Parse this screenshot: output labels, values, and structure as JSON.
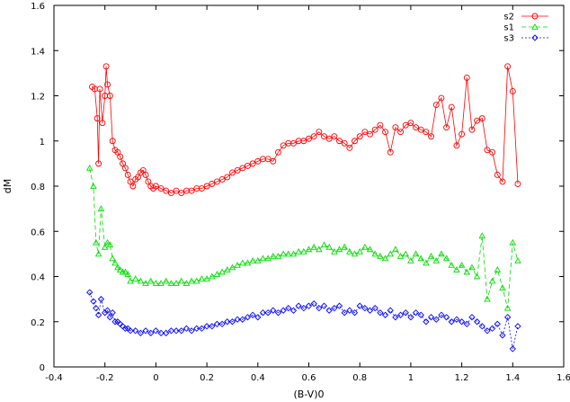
{
  "chart_data": {
    "type": "line",
    "xlabel": "(B-V)0",
    "ylabel": "dM",
    "xlim": [
      -0.4,
      1.6
    ],
    "ylim": [
      0,
      1.6
    ],
    "xticks": [
      -0.4,
      -0.2,
      0,
      0.2,
      0.4,
      0.6,
      0.8,
      1,
      1.2,
      1.4,
      1.6
    ],
    "yticks": [
      0,
      0.2,
      0.4,
      0.6,
      0.8,
      1,
      1.2,
      1.4,
      1.6
    ],
    "xtick_labels": [
      "-0.4",
      "-0.2",
      "0",
      "0.2",
      "0.4",
      "0.6",
      "0.8",
      "1",
      "1.2",
      "1.4",
      "1.6"
    ],
    "ytick_labels": [
      "0",
      "0.2",
      "0.4",
      "0.6",
      "0.8",
      "1",
      "1.2",
      "1.4",
      "1.6"
    ],
    "grid": false,
    "legend_position": "top-right",
    "series": [
      {
        "name": "s2",
        "color": "#ff0000",
        "marker": "circle",
        "dash": "",
        "x": [
          -0.25,
          -0.24,
          -0.23,
          -0.225,
          -0.22,
          -0.21,
          -0.2,
          -0.195,
          -0.19,
          -0.18,
          -0.17,
          -0.16,
          -0.15,
          -0.14,
          -0.13,
          -0.12,
          -0.11,
          -0.1,
          -0.09,
          -0.08,
          -0.07,
          -0.06,
          -0.05,
          -0.04,
          -0.03,
          -0.02,
          -0.01,
          0,
          0.02,
          0.04,
          0.06,
          0.08,
          0.1,
          0.12,
          0.14,
          0.16,
          0.18,
          0.2,
          0.22,
          0.24,
          0.26,
          0.28,
          0.3,
          0.32,
          0.34,
          0.36,
          0.38,
          0.4,
          0.42,
          0.44,
          0.46,
          0.48,
          0.5,
          0.52,
          0.54,
          0.56,
          0.58,
          0.6,
          0.62,
          0.64,
          0.66,
          0.68,
          0.7,
          0.72,
          0.74,
          0.76,
          0.78,
          0.8,
          0.82,
          0.84,
          0.86,
          0.88,
          0.9,
          0.92,
          0.94,
          0.96,
          0.98,
          1,
          1.02,
          1.04,
          1.06,
          1.08,
          1.1,
          1.12,
          1.14,
          1.16,
          1.18,
          1.2,
          1.22,
          1.24,
          1.26,
          1.28,
          1.3,
          1.32,
          1.34,
          1.36,
          1.38,
          1.4,
          1.42
        ],
        "y": [
          1.24,
          1.23,
          1.1,
          0.9,
          1.23,
          1.08,
          1.2,
          1.33,
          1.25,
          1.2,
          1.0,
          0.96,
          0.95,
          0.93,
          0.9,
          0.88,
          0.85,
          0.82,
          0.8,
          0.83,
          0.84,
          0.86,
          0.87,
          0.85,
          0.82,
          0.8,
          0.79,
          0.8,
          0.79,
          0.78,
          0.77,
          0.78,
          0.77,
          0.78,
          0.78,
          0.79,
          0.79,
          0.8,
          0.81,
          0.82,
          0.83,
          0.84,
          0.86,
          0.87,
          0.88,
          0.89,
          0.9,
          0.91,
          0.92,
          0.92,
          0.91,
          0.95,
          0.98,
          0.99,
          0.99,
          1.0,
          1.0,
          1.01,
          1.02,
          1.04,
          1.02,
          1.01,
          1.02,
          1.0,
          0.99,
          0.97,
          1.0,
          1.02,
          1.04,
          1.03,
          1.05,
          1.07,
          1.04,
          0.95,
          1.06,
          1.04,
          1.07,
          1.08,
          1.06,
          1.05,
          1.04,
          1.02,
          1.16,
          1.19,
          1.06,
          1.15,
          0.98,
          1.03,
          1.28,
          1.05,
          1.09,
          1.1,
          0.96,
          0.95,
          0.85,
          0.82,
          1.33,
          1.22,
          0.81
        ]
      },
      {
        "name": "s1",
        "color": "#00dd00",
        "marker": "triangle",
        "dash": "5,3",
        "x": [
          -0.26,
          -0.245,
          -0.235,
          -0.225,
          -0.215,
          -0.2,
          -0.19,
          -0.18,
          -0.17,
          -0.16,
          -0.15,
          -0.14,
          -0.13,
          -0.12,
          -0.11,
          -0.1,
          -0.08,
          -0.06,
          -0.04,
          -0.02,
          0,
          0.02,
          0.04,
          0.06,
          0.08,
          0.1,
          0.12,
          0.14,
          0.16,
          0.18,
          0.2,
          0.22,
          0.24,
          0.26,
          0.28,
          0.3,
          0.32,
          0.34,
          0.36,
          0.38,
          0.4,
          0.42,
          0.44,
          0.46,
          0.48,
          0.5,
          0.52,
          0.54,
          0.56,
          0.58,
          0.6,
          0.62,
          0.64,
          0.66,
          0.68,
          0.7,
          0.72,
          0.74,
          0.76,
          0.78,
          0.8,
          0.82,
          0.84,
          0.86,
          0.88,
          0.9,
          0.92,
          0.94,
          0.96,
          0.98,
          1,
          1.02,
          1.04,
          1.06,
          1.08,
          1.1,
          1.12,
          1.14,
          1.16,
          1.18,
          1.2,
          1.22,
          1.24,
          1.26,
          1.28,
          1.3,
          1.32,
          1.34,
          1.36,
          1.38,
          1.4,
          1.42
        ],
        "y": [
          0.88,
          0.8,
          0.55,
          0.5,
          0.7,
          0.53,
          0.55,
          0.54,
          0.48,
          0.46,
          0.44,
          0.43,
          0.42,
          0.42,
          0.41,
          0.38,
          0.39,
          0.38,
          0.37,
          0.38,
          0.37,
          0.37,
          0.38,
          0.37,
          0.37,
          0.38,
          0.37,
          0.38,
          0.38,
          0.39,
          0.39,
          0.4,
          0.41,
          0.42,
          0.43,
          0.44,
          0.45,
          0.46,
          0.46,
          0.47,
          0.47,
          0.48,
          0.48,
          0.49,
          0.49,
          0.5,
          0.5,
          0.5,
          0.51,
          0.51,
          0.52,
          0.53,
          0.52,
          0.54,
          0.53,
          0.51,
          0.52,
          0.53,
          0.51,
          0.5,
          0.51,
          0.53,
          0.52,
          0.5,
          0.49,
          0.48,
          0.5,
          0.52,
          0.49,
          0.5,
          0.47,
          0.5,
          0.48,
          0.46,
          0.49,
          0.47,
          0.5,
          0.48,
          0.45,
          0.43,
          0.45,
          0.42,
          0.44,
          0.4,
          0.58,
          0.3,
          0.38,
          0.43,
          0.35,
          0.26,
          0.55,
          0.47
        ]
      },
      {
        "name": "s3",
        "color": "#0000ff",
        "marker": "diamond",
        "dash": "2,2",
        "x": [
          -0.26,
          -0.245,
          -0.235,
          -0.225,
          -0.215,
          -0.2,
          -0.19,
          -0.18,
          -0.17,
          -0.16,
          -0.15,
          -0.14,
          -0.13,
          -0.12,
          -0.11,
          -0.1,
          -0.08,
          -0.06,
          -0.04,
          -0.02,
          0,
          0.02,
          0.04,
          0.06,
          0.08,
          0.1,
          0.12,
          0.14,
          0.16,
          0.18,
          0.2,
          0.22,
          0.24,
          0.26,
          0.28,
          0.3,
          0.32,
          0.34,
          0.36,
          0.38,
          0.4,
          0.42,
          0.44,
          0.46,
          0.48,
          0.5,
          0.52,
          0.54,
          0.56,
          0.58,
          0.6,
          0.62,
          0.64,
          0.66,
          0.68,
          0.7,
          0.72,
          0.74,
          0.76,
          0.78,
          0.8,
          0.82,
          0.84,
          0.86,
          0.88,
          0.9,
          0.92,
          0.94,
          0.96,
          0.98,
          1,
          1.02,
          1.04,
          1.06,
          1.08,
          1.1,
          1.12,
          1.14,
          1.16,
          1.18,
          1.2,
          1.22,
          1.24,
          1.26,
          1.28,
          1.3,
          1.32,
          1.34,
          1.36,
          1.38,
          1.4,
          1.42
        ],
        "y": [
          0.33,
          0.29,
          0.26,
          0.23,
          0.3,
          0.24,
          0.25,
          0.22,
          0.24,
          0.2,
          0.2,
          0.19,
          0.18,
          0.17,
          0.17,
          0.16,
          0.16,
          0.15,
          0.16,
          0.15,
          0.16,
          0.15,
          0.15,
          0.16,
          0.16,
          0.16,
          0.17,
          0.16,
          0.17,
          0.17,
          0.18,
          0.18,
          0.19,
          0.19,
          0.2,
          0.2,
          0.21,
          0.21,
          0.22,
          0.23,
          0.22,
          0.24,
          0.24,
          0.25,
          0.24,
          0.25,
          0.26,
          0.25,
          0.27,
          0.26,
          0.27,
          0.28,
          0.26,
          0.27,
          0.25,
          0.26,
          0.27,
          0.24,
          0.25,
          0.24,
          0.27,
          0.26,
          0.25,
          0.26,
          0.24,
          0.23,
          0.25,
          0.22,
          0.23,
          0.24,
          0.22,
          0.24,
          0.23,
          0.2,
          0.22,
          0.21,
          0.23,
          0.22,
          0.2,
          0.21,
          0.2,
          0.19,
          0.22,
          0.2,
          0.18,
          0.16,
          0.17,
          0.19,
          0.14,
          0.22,
          0.08,
          0.18
        ]
      }
    ]
  }
}
